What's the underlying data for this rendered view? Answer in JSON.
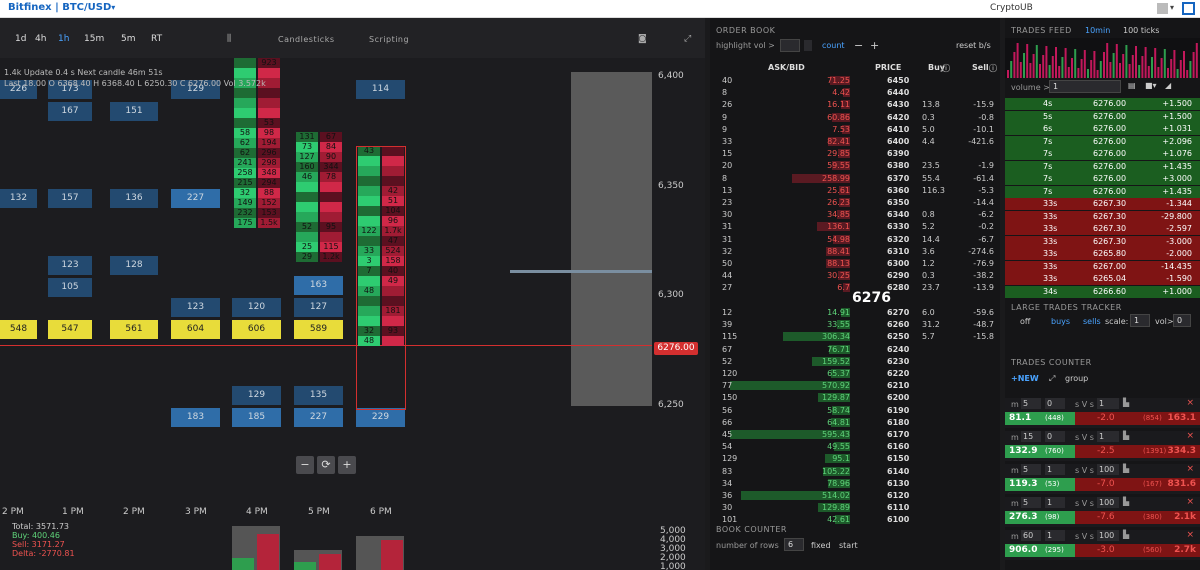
{
  "topbar": {
    "exchange": "Bitfinex | BTC/USD",
    "user": "CryptoUB"
  },
  "toolbar": {
    "timeframes": [
      "1d",
      "4h",
      "1h",
      "15m",
      "5m",
      "RT"
    ],
    "active": "1h",
    "candlesticks": "Candlesticks",
    "scripting": "Scripting"
  },
  "ohlc": {
    "line1": "1.4k Update 0.4 s   Next candle 46m 51s",
    "line2": "Last 18.00  O 6368.40  H 6368.40  L 6250.30  C 6276.00  Vol 3.572k"
  },
  "price_axis": [
    "6,400",
    "6,350",
    "6,300",
    "6,250"
  ],
  "current_price": "6276.00",
  "time_axis": [
    "2 PM",
    "1 PM",
    "2 PM",
    "3 PM",
    "4 PM",
    "5 PM",
    "6 PM"
  ],
  "volume_stats": {
    "total": "Total: 3571.73",
    "buy": "Buy: 400.46",
    "sell": "Sell: 3171.27",
    "delta": "Delta: -2770.81"
  },
  "volume_axis": [
    "5,000",
    "4,000",
    "3,000",
    "2,000",
    "1,000"
  ],
  "blocks": [
    [
      "226",
      "173",
      "129",
      "114"
    ],
    [
      "167",
      "151"
    ],
    [
      "132",
      "157",
      "136",
      "227"
    ],
    [
      "123",
      "128"
    ],
    [
      "105",
      "163"
    ],
    [
      "123",
      "120",
      "127"
    ],
    [
      "548",
      "547",
      "561",
      "604",
      "606",
      "589"
    ],
    [
      "129",
      "135"
    ],
    [
      "183",
      "185",
      "227",
      "229"
    ]
  ],
  "footprint": {
    "c4": [
      [
        "",
        "923"
      ],
      [
        "",
        ""
      ],
      [
        "",
        ""
      ],
      [
        "",
        ""
      ],
      [
        "",
        ""
      ],
      [
        "",
        ""
      ],
      [
        "",
        "53"
      ],
      [
        "58",
        "98"
      ],
      [
        "62",
        "194"
      ],
      [
        "62",
        "296"
      ],
      [
        "241",
        "298"
      ],
      [
        "258",
        "348"
      ],
      [
        "215",
        "294"
      ],
      [
        "32",
        "88"
      ],
      [
        "149",
        "152"
      ],
      [
        "232",
        "153"
      ],
      [
        "175",
        "1.5k"
      ]
    ],
    "c5": [
      [
        "131",
        "67"
      ],
      [
        "73",
        "84"
      ],
      [
        "127",
        "90"
      ],
      [
        "160",
        "344"
      ],
      [
        "46",
        "78"
      ],
      [
        "",
        ""
      ],
      [
        "",
        ""
      ],
      [
        "",
        ""
      ],
      [
        "",
        ""
      ],
      [
        "52",
        "95"
      ],
      [
        "",
        ""
      ],
      [
        "25",
        "115"
      ],
      [
        "29",
        "1.2k"
      ]
    ],
    "c6": [
      [
        "43",
        ""
      ],
      [
        "",
        ""
      ],
      [
        "",
        ""
      ],
      [
        "",
        ""
      ],
      [
        "",
        "42"
      ],
      [
        "",
        "51"
      ],
      [
        "",
        "104"
      ],
      [
        "",
        "96"
      ],
      [
        "122",
        "1.7k"
      ],
      [
        "",
        "47"
      ],
      [
        "33",
        "524"
      ],
      [
        "3",
        "158"
      ],
      [
        "7",
        "40"
      ],
      [
        "",
        "49"
      ],
      [
        "48",
        ""
      ],
      [
        "",
        ""
      ],
      [
        "",
        "181"
      ],
      [
        "",
        ""
      ],
      [
        "32",
        "93"
      ],
      [
        "48",
        ""
      ]
    ]
  },
  "orderbook": {
    "title": "ORDER BOOK",
    "highlight": "highlight vol >",
    "count": "count",
    "reset": "reset b/s",
    "headers": {
      "askbid": "ASK/BID",
      "price": "PRICE",
      "buy": "Buy",
      "sell": "Sell"
    },
    "asks": [
      [
        "40",
        "71.25",
        "6450",
        "",
        ""
      ],
      [
        "8",
        "4.42",
        "6440",
        "",
        ""
      ],
      [
        "26",
        "16.11",
        "6430",
        "13.8",
        "-15.9"
      ],
      [
        "9",
        "60.86",
        "6420",
        "0.3",
        "-0.8"
      ],
      [
        "9",
        "7.53",
        "6410",
        "5.0",
        "-10.1"
      ],
      [
        "33",
        "82.41",
        "6400",
        "4.4",
        "-421.6"
      ],
      [
        "15",
        "29.85",
        "6390",
        "",
        ""
      ],
      [
        "20",
        "59.55",
        "6380",
        "23.5",
        "-1.9"
      ],
      [
        "8",
        "258.99",
        "6370",
        "55.4",
        "-61.4"
      ],
      [
        "13",
        "25.61",
        "6360",
        "116.3",
        "-5.3"
      ],
      [
        "23",
        "26.23",
        "6350",
        "",
        "-14.4"
      ],
      [
        "30",
        "34.85",
        "6340",
        "0.8",
        "-6.2"
      ],
      [
        "31",
        "136.1",
        "6330",
        "5.2",
        "-0.2"
      ],
      [
        "31",
        "54.98",
        "6320",
        "14.4",
        "-6.7"
      ],
      [
        "32",
        "88.41",
        "6310",
        "3.6",
        "-274.6"
      ],
      [
        "50",
        "88.13",
        "6300",
        "1.2",
        "-76.9"
      ],
      [
        "44",
        "30.25",
        "6290",
        "0.3",
        "-38.2"
      ],
      [
        "27",
        "6.7",
        "6280",
        "23.7",
        "-13.9"
      ]
    ],
    "mid": "6276",
    "bids": [
      [
        "12",
        "14.91",
        "6270",
        "6.0",
        "-59.6"
      ],
      [
        "39",
        "33.55",
        "6260",
        "31.2",
        "-48.7"
      ],
      [
        "115",
        "306.34",
        "6250",
        "5.7",
        "-15.8"
      ],
      [
        "67",
        "76.71",
        "6240",
        "",
        ""
      ],
      [
        "52",
        "159.52",
        "6230",
        "",
        ""
      ],
      [
        "120",
        "65.37",
        "6220",
        "",
        ""
      ],
      [
        "77",
        "570.92",
        "6210",
        "",
        ""
      ],
      [
        "150",
        "129.87",
        "6200",
        "",
        ""
      ],
      [
        "56",
        "58.74",
        "6190",
        "",
        ""
      ],
      [
        "66",
        "64.81",
        "6180",
        "",
        ""
      ],
      [
        "45",
        "595.43",
        "6170",
        "",
        ""
      ],
      [
        "54",
        "49.55",
        "6160",
        "",
        ""
      ],
      [
        "129",
        "95.1",
        "6150",
        "",
        ""
      ],
      [
        "83",
        "105.22",
        "6140",
        "",
        ""
      ],
      [
        "34",
        "78.96",
        "6130",
        "",
        ""
      ],
      [
        "36",
        "514.02",
        "6120",
        "",
        ""
      ],
      [
        "30",
        "129.89",
        "6110",
        "",
        ""
      ],
      [
        "101",
        "42.61",
        "6100",
        "",
        ""
      ]
    ],
    "book_counter": "BOOK COUNTER",
    "rows_label": "number of rows",
    "rows": "6",
    "fixed": "fixed",
    "start": "start"
  },
  "trades": {
    "title": "TRADES FEED",
    "tab1": "10min",
    "tab2": "100 ticks",
    "volume_label": "volume >",
    "volume": "1",
    "rows": [
      [
        "4s",
        "6276.00",
        "+1.500",
        "g"
      ],
      [
        "5s",
        "6276.00",
        "+1.500",
        "g"
      ],
      [
        "6s",
        "6276.00",
        "+1.031",
        "g"
      ],
      [
        "7s",
        "6276.00",
        "+2.096",
        "g"
      ],
      [
        "7s",
        "6276.00",
        "+1.076",
        "g"
      ],
      [
        "7s",
        "6276.00",
        "+1.435",
        "g"
      ],
      [
        "7s",
        "6276.00",
        "+3.000",
        "g"
      ],
      [
        "7s",
        "6276.00",
        "+1.435",
        "g"
      ],
      [
        "33s",
        "6267.30",
        "-1.344",
        "r"
      ],
      [
        "33s",
        "6267.30",
        "-29.800",
        "r"
      ],
      [
        "33s",
        "6267.30",
        "-2.597",
        "r"
      ],
      [
        "33s",
        "6267.30",
        "-3.000",
        "r"
      ],
      [
        "33s",
        "6265.80",
        "-2.000",
        "r"
      ],
      [
        "33s",
        "6267.00",
        "-14.435",
        "r"
      ],
      [
        "33s",
        "6265.04",
        "-1.590",
        "r"
      ],
      [
        "34s",
        "6266.60",
        "+1.000",
        "g"
      ]
    ]
  },
  "large_trades": {
    "title": "LARGE TRADES TRACKER",
    "off": "off",
    "buys": "buys",
    "sells": "sells",
    "scale": "scale:",
    "scale_val": "1",
    "vol": "vol>",
    "vol_val": "0"
  },
  "trades_counter": {
    "title": "TRADES COUNTER",
    "new": "NEW",
    "group": "group",
    "cards": [
      {
        "m": "5",
        "n": "0",
        "s": "1",
        "left": "81.1",
        "lc": "(448)",
        "mid": "-2.0",
        "rc": "(854)",
        "right": "163.1"
      },
      {
        "m": "15",
        "n": "0",
        "s": "1",
        "left": "132.9",
        "lc": "(760)",
        "mid": "-2.5",
        "rc": "(1391)",
        "right": "334.3"
      },
      {
        "m": "5",
        "n": "1",
        "s": "100",
        "left": "119.3",
        "lc": "(53)",
        "mid": "-7.0",
        "rc": "(167)",
        "right": "831.6"
      },
      {
        "m": "5",
        "n": "1",
        "s": "100",
        "left": "276.3",
        "lc": "(98)",
        "mid": "-7.6",
        "rc": "(380)",
        "right": "2.1k"
      },
      {
        "m": "60",
        "n": "1",
        "s": "100",
        "left": "906.0",
        "lc": "(295)",
        "mid": "-3.0",
        "rc": "(560)",
        "right": "2.7k"
      }
    ]
  }
}
